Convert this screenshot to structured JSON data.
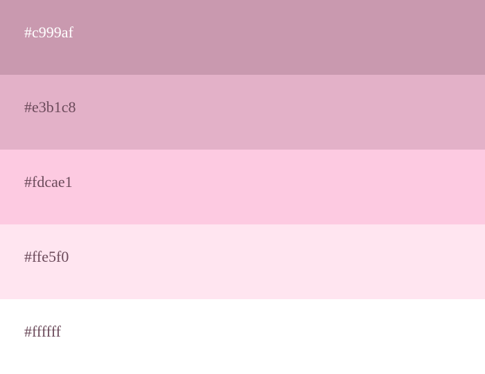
{
  "swatches": [
    {
      "label": "#c999af",
      "color": "#c999af",
      "text_color": "#ffffff"
    },
    {
      "label": "#e3b1c8",
      "color": "#e3b1c8",
      "text_color": "#6b4a5a"
    },
    {
      "label": "#fdcae1",
      "color": "#fdcae1",
      "text_color": "#6b4a5a"
    },
    {
      "label": "#ffe5f0",
      "color": "#ffe5f0",
      "text_color": "#6b4a5a"
    },
    {
      "label": "#ffffff",
      "color": "#ffffff",
      "text_color": "#6b4a5a"
    }
  ]
}
